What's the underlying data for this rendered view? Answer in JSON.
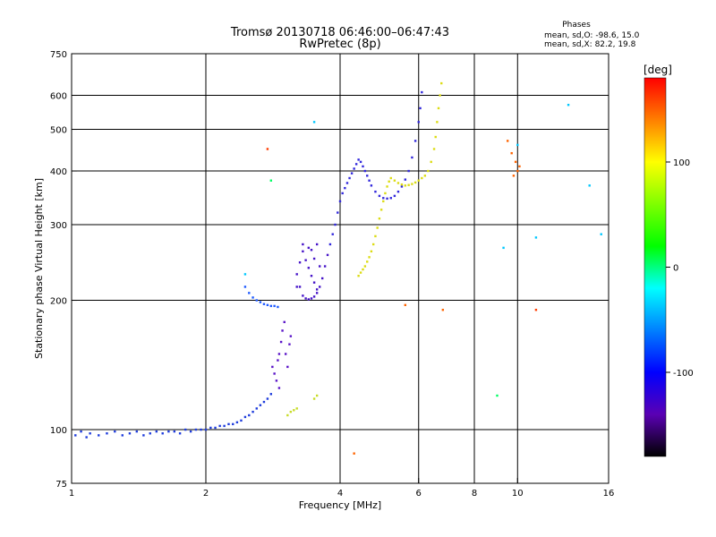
{
  "chart_data": {
    "type": "scatter",
    "title": "Tromsø 20130718 06:46:00–06:47:43",
    "subtitle": "RwPretec (8p)",
    "xlabel": "Frequency [MHz]",
    "ylabel": "Stationary phase Virtual Height [km]",
    "x_scale": "log",
    "y_scale": "log",
    "xlim": [
      1,
      16
    ],
    "ylim": [
      75,
      750
    ],
    "x_ticks": [
      1,
      2,
      4,
      6,
      8,
      10,
      16
    ],
    "y_ticks": [
      75,
      100,
      200,
      300,
      400,
      500,
      600,
      750
    ],
    "grid_x": [
      2,
      4,
      6,
      8,
      10
    ],
    "grid_y": [
      100,
      200,
      300,
      400,
      500,
      600
    ],
    "grid": true,
    "phase_stats": {
      "heading": "Phases",
      "line1": "mean, sd,O: -98.6, 15.0",
      "line2": "mean, sd,X:  82.2, 19.8"
    },
    "colorbar": {
      "label": "[deg]",
      "range": [
        -180,
        180
      ],
      "ticks": [
        100,
        0,
        -100
      ],
      "colors": [
        "#ff0000",
        "#ff7f00",
        "#ffff00",
        "#7fff00",
        "#00ff00",
        "#00ffff",
        "#0080ff",
        "#0000ff",
        "#5a00b4",
        "#000000"
      ]
    },
    "series": [
      {
        "color": "#1e3cdc",
        "points": [
          [
            1.02,
            97
          ],
          [
            1.05,
            99
          ],
          [
            1.08,
            96
          ],
          [
            1.1,
            98
          ],
          [
            1.15,
            97
          ],
          [
            1.2,
            98
          ],
          [
            1.25,
            99
          ],
          [
            1.3,
            97
          ],
          [
            1.35,
            98
          ],
          [
            1.4,
            99
          ],
          [
            1.45,
            97
          ],
          [
            1.5,
            98
          ],
          [
            1.55,
            99
          ],
          [
            1.6,
            98
          ],
          [
            1.65,
            99
          ],
          [
            1.7,
            99
          ],
          [
            1.75,
            98
          ],
          [
            1.8,
            100
          ],
          [
            1.85,
            99
          ],
          [
            1.9,
            100
          ],
          [
            1.95,
            100
          ],
          [
            2.0,
            100
          ],
          [
            2.05,
            101
          ],
          [
            2.1,
            101
          ],
          [
            2.15,
            102
          ],
          [
            2.2,
            102
          ],
          [
            2.25,
            103
          ],
          [
            2.3,
            103
          ],
          [
            2.35,
            104
          ],
          [
            2.4,
            105
          ],
          [
            2.45,
            107
          ],
          [
            2.5,
            108
          ],
          [
            2.55,
            110
          ],
          [
            2.6,
            112
          ],
          [
            2.65,
            114
          ],
          [
            2.7,
            116
          ],
          [
            2.75,
            118
          ],
          [
            2.8,
            121
          ]
        ]
      },
      {
        "color": "#1e5aff",
        "points": [
          [
            2.45,
            215
          ],
          [
            2.5,
            208
          ],
          [
            2.55,
            203
          ],
          [
            2.6,
            200
          ],
          [
            2.65,
            198
          ],
          [
            2.7,
            196
          ],
          [
            2.75,
            195
          ],
          [
            2.8,
            194
          ],
          [
            2.85,
            194
          ],
          [
            2.9,
            193
          ]
        ]
      },
      {
        "color": "#5a14c8",
        "points": [
          [
            2.82,
            140
          ],
          [
            2.85,
            135
          ],
          [
            2.9,
            145
          ],
          [
            2.92,
            150
          ],
          [
            2.95,
            160
          ],
          [
            2.97,
            170
          ],
          [
            3.0,
            178
          ],
          [
            3.02,
            150
          ],
          [
            3.05,
            140
          ],
          [
            3.08,
            158
          ],
          [
            3.1,
            165
          ],
          [
            2.88,
            130
          ],
          [
            2.92,
            125
          ]
        ]
      },
      {
        "color": "#4614c8",
        "points": [
          [
            3.2,
            230
          ],
          [
            3.25,
            215
          ],
          [
            3.3,
            205
          ],
          [
            3.35,
            202
          ],
          [
            3.4,
            201
          ],
          [
            3.45,
            202
          ],
          [
            3.5,
            204
          ],
          [
            3.55,
            208
          ],
          [
            3.6,
            215
          ],
          [
            3.65,
            225
          ],
          [
            3.7,
            240
          ],
          [
            3.75,
            255
          ],
          [
            3.3,
            260
          ],
          [
            3.35,
            248
          ],
          [
            3.4,
            238
          ],
          [
            3.45,
            228
          ],
          [
            3.5,
            220
          ],
          [
            3.55,
            212
          ],
          [
            3.25,
            245
          ],
          [
            3.3,
            270
          ],
          [
            3.4,
            265
          ],
          [
            3.5,
            250
          ],
          [
            3.6,
            240
          ],
          [
            3.45,
            262
          ],
          [
            3.55,
            270
          ],
          [
            3.2,
            215
          ]
        ]
      },
      {
        "color": "#3228dc",
        "points": [
          [
            3.8,
            270
          ],
          [
            3.85,
            285
          ],
          [
            3.9,
            300
          ],
          [
            3.95,
            320
          ],
          [
            4.0,
            340
          ],
          [
            4.05,
            355
          ],
          [
            4.1,
            365
          ],
          [
            4.15,
            375
          ],
          [
            4.2,
            385
          ],
          [
            4.25,
            395
          ],
          [
            4.3,
            405
          ],
          [
            4.35,
            415
          ],
          [
            4.4,
            425
          ],
          [
            4.45,
            420
          ],
          [
            4.5,
            410
          ],
          [
            4.55,
            400
          ],
          [
            4.6,
            390
          ],
          [
            4.65,
            380
          ],
          [
            4.7,
            370
          ],
          [
            4.8,
            358
          ],
          [
            4.9,
            350
          ],
          [
            5.0,
            346
          ],
          [
            5.1,
            345
          ],
          [
            5.2,
            346
          ],
          [
            5.3,
            350
          ],
          [
            5.4,
            358
          ],
          [
            5.5,
            368
          ],
          [
            5.6,
            382
          ],
          [
            5.7,
            400
          ],
          [
            5.8,
            430
          ],
          [
            5.9,
            470
          ],
          [
            6.0,
            520
          ],
          [
            6.05,
            560
          ],
          [
            6.1,
            610
          ]
        ]
      },
      {
        "color": "#dcdc14",
        "points": [
          [
            4.4,
            228
          ],
          [
            4.45,
            232
          ],
          [
            4.5,
            236
          ],
          [
            4.55,
            240
          ],
          [
            4.6,
            246
          ],
          [
            4.65,
            252
          ],
          [
            4.7,
            260
          ],
          [
            4.75,
            270
          ],
          [
            4.8,
            282
          ],
          [
            4.85,
            295
          ],
          [
            4.9,
            310
          ],
          [
            4.95,
            325
          ],
          [
            5.0,
            340
          ],
          [
            5.05,
            355
          ],
          [
            5.1,
            368
          ],
          [
            5.15,
            378
          ],
          [
            5.2,
            385
          ],
          [
            5.3,
            380
          ],
          [
            5.4,
            375
          ],
          [
            5.5,
            372
          ],
          [
            5.6,
            370
          ],
          [
            5.7,
            371
          ],
          [
            5.8,
            373
          ],
          [
            5.9,
            376
          ],
          [
            6.0,
            380
          ],
          [
            6.1,
            385
          ],
          [
            6.2,
            390
          ],
          [
            6.3,
            400
          ],
          [
            6.4,
            420
          ],
          [
            6.5,
            450
          ],
          [
            6.55,
            480
          ],
          [
            6.6,
            520
          ],
          [
            6.65,
            560
          ],
          [
            6.7,
            600
          ],
          [
            6.75,
            640
          ]
        ]
      },
      {
        "color": "#c8dc28",
        "points": [
          [
            3.05,
            108
          ],
          [
            3.1,
            110
          ],
          [
            3.15,
            111
          ],
          [
            3.2,
            112
          ],
          [
            3.5,
            118
          ],
          [
            3.55,
            120
          ]
        ]
      },
      {
        "color": "#ff6400",
        "points": [
          [
            9.5,
            470
          ],
          [
            9.7,
            440
          ],
          [
            9.9,
            420
          ],
          [
            10.0,
            400
          ],
          [
            10.1,
            410
          ],
          [
            9.8,
            390
          ],
          [
            4.3,
            88
          ],
          [
            5.6,
            195
          ],
          [
            6.8,
            190
          ]
        ]
      },
      {
        "color": "#00c8ff",
        "points": [
          [
            2.45,
            230
          ],
          [
            3.5,
            520
          ],
          [
            9.3,
            265
          ],
          [
            10.0,
            460
          ],
          [
            11.0,
            280
          ],
          [
            13.0,
            570
          ],
          [
            14.5,
            370
          ],
          [
            15.4,
            285
          ]
        ]
      },
      {
        "color": "#ff3c00",
        "points": [
          [
            2.75,
            450
          ],
          [
            11.0,
            190
          ]
        ]
      },
      {
        "color": "#00ff64",
        "points": [
          [
            2.8,
            380
          ],
          [
            9.0,
            120
          ]
        ]
      }
    ]
  }
}
